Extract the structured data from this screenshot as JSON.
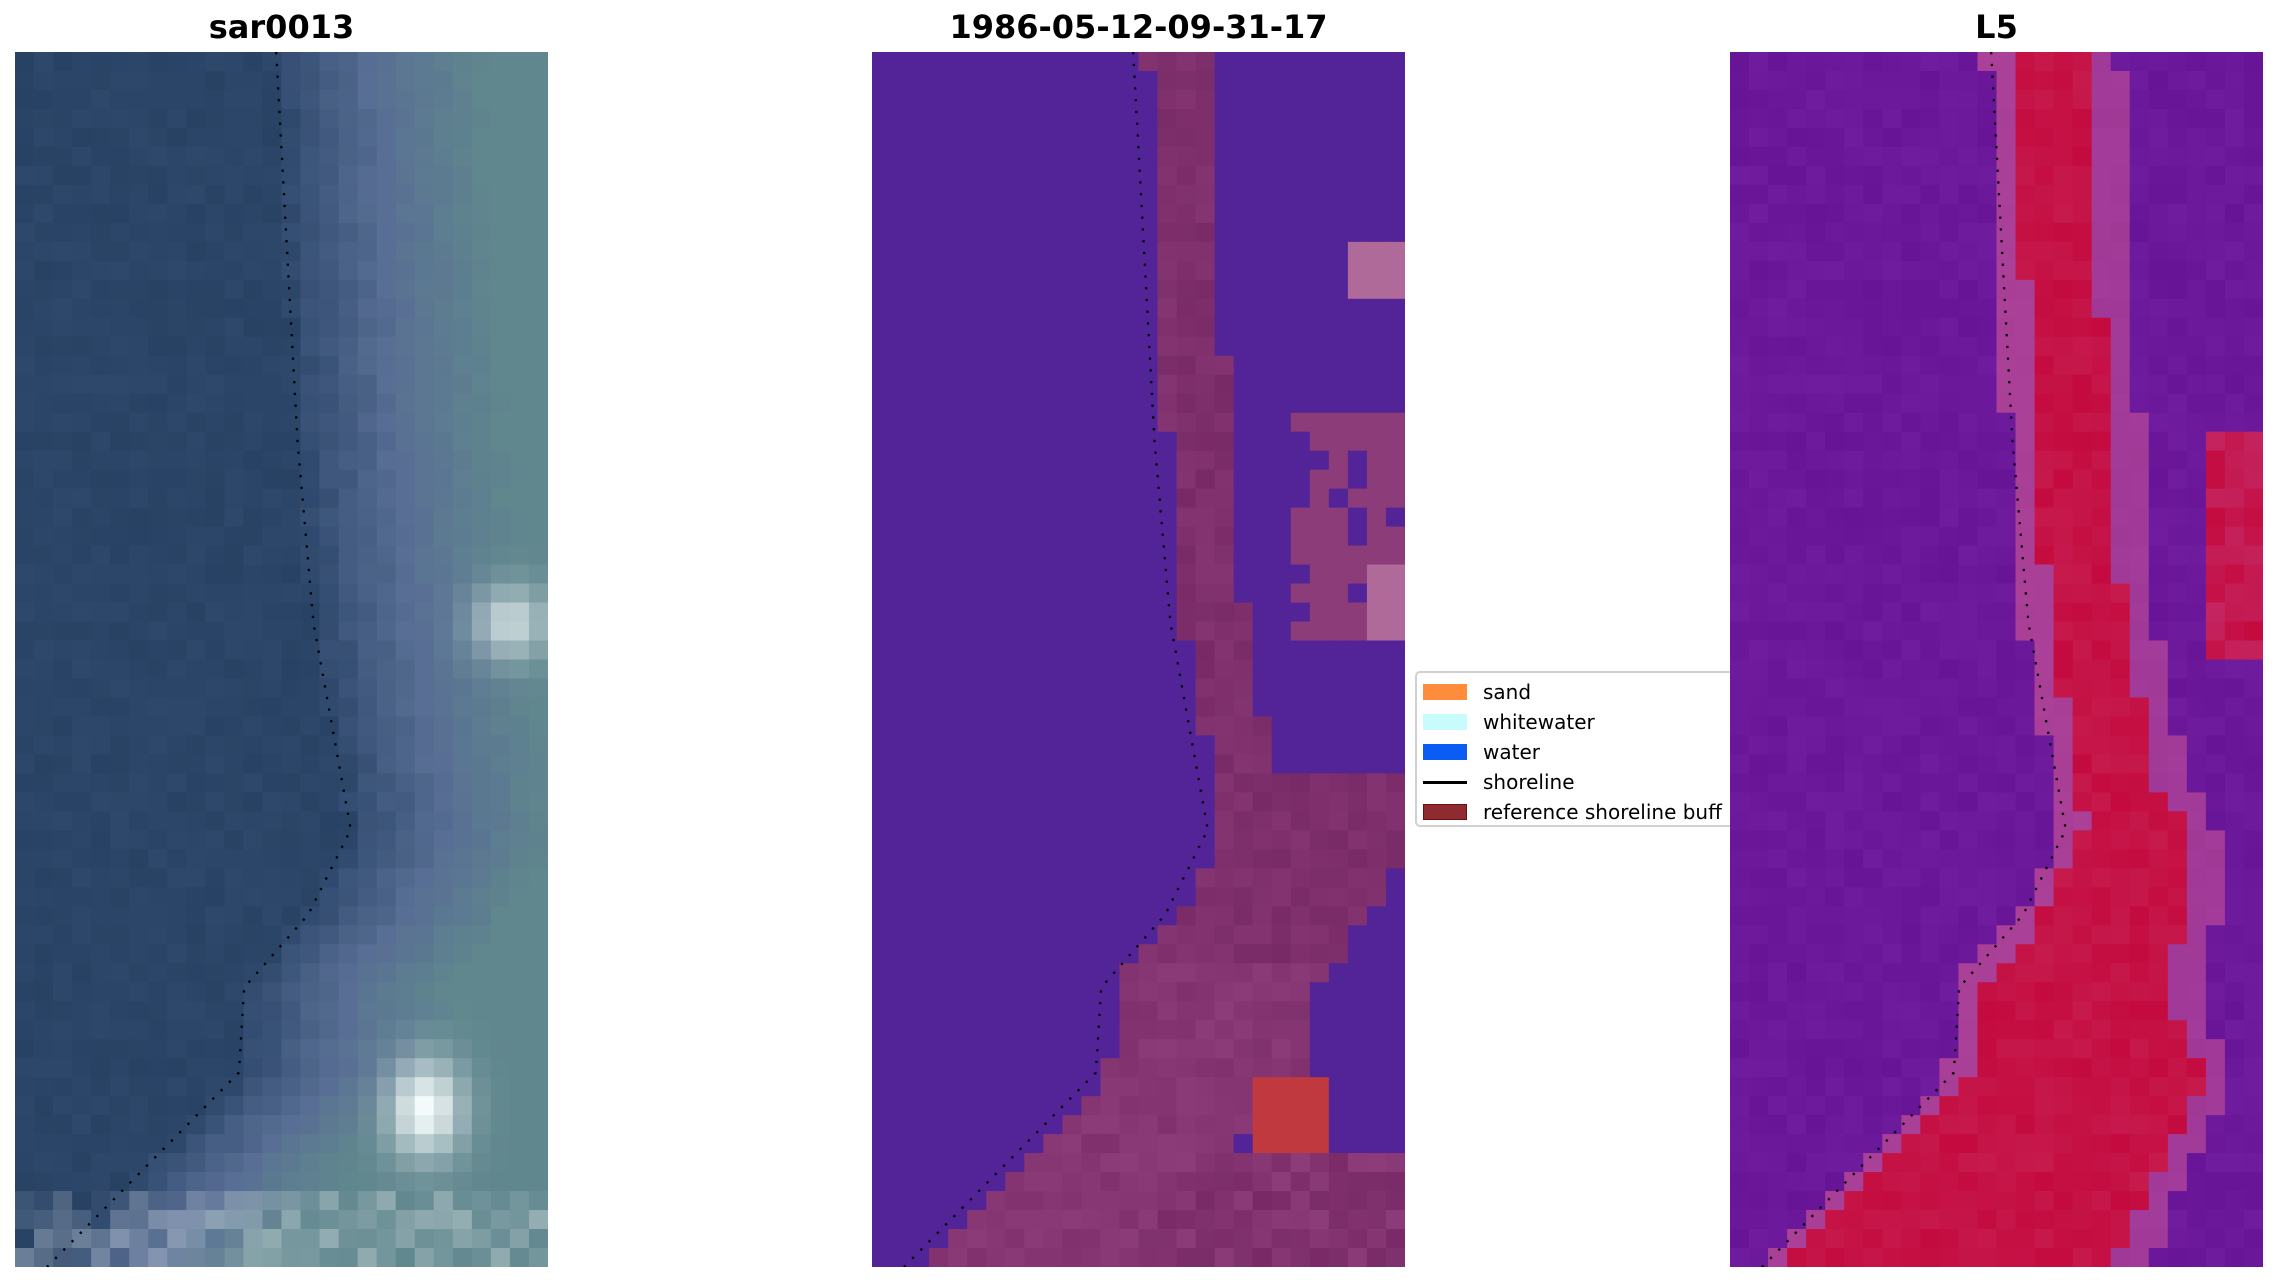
{
  "panels": [
    {
      "title": "sar0013",
      "kind": "rgb"
    },
    {
      "title": "1986-05-12-09-31-17",
      "kind": "classified"
    },
    {
      "title": "L5",
      "kind": "index"
    }
  ],
  "legend": {
    "items": [
      {
        "label": "sand",
        "color": "#ff8c3a",
        "type": "patch"
      },
      {
        "label": "whitewater",
        "color": "#c8fbfb",
        "type": "patch"
      },
      {
        "label": "water",
        "color": "#0a5cf5",
        "type": "patch"
      },
      {
        "label": "shoreline",
        "color": "#000000",
        "type": "line"
      },
      {
        "label": "reference shoreline buff",
        "color": "#8e2a30",
        "type": "patch"
      }
    ]
  }
}
